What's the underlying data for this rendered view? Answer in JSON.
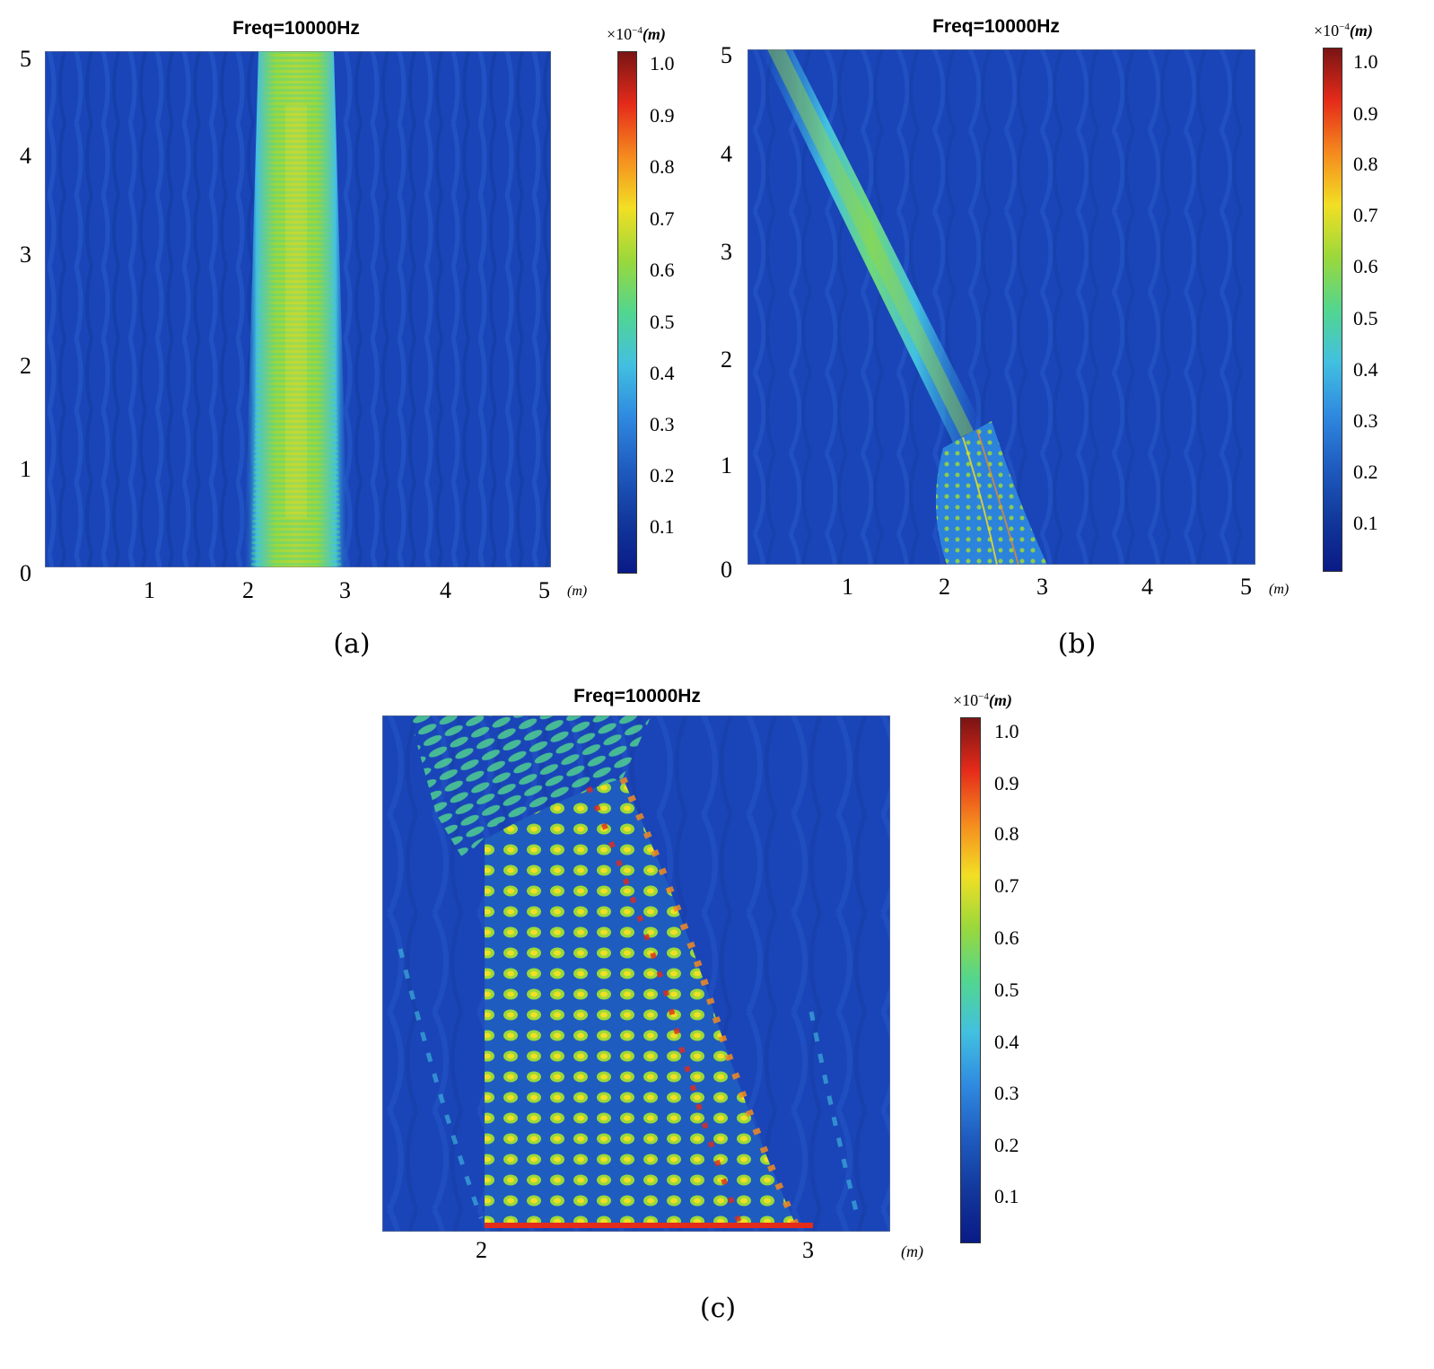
{
  "colors": {
    "background": "#1a45b8",
    "colormap": [
      "#0a1a86",
      "#12389c",
      "#1f5cc0",
      "#2f8ae0",
      "#42c0e0",
      "#52d68f",
      "#9ad83b",
      "#f2df24",
      "#f58a1e",
      "#e52b1a",
      "#7a1414"
    ]
  },
  "panels": [
    {
      "caption": "(a)",
      "title": "Freq=10000Hz",
      "x_unit": "(m)",
      "cb_mult_base": "×10",
      "cb_mult_exp": "−4",
      "cb_mult_unit": "(m)"
    },
    {
      "caption": "(b)",
      "title": "Freq=10000Hz",
      "x_unit": "(m)",
      "cb_mult_base": "×10",
      "cb_mult_exp": "−4",
      "cb_mult_unit": "(m)"
    },
    {
      "caption": "(c)",
      "title": "Freq=10000Hz",
      "x_unit": "(m)",
      "cb_mult_base": "×10",
      "cb_mult_exp": "−4",
      "cb_mult_unit": "(m)"
    }
  ],
  "chart_data": [
    {
      "type": "heatmap",
      "title": "Freq=10000Hz",
      "xlabel": "(m)",
      "ylabel": "",
      "xlim": [
        0,
        5
      ],
      "ylim": [
        0,
        5
      ],
      "x_ticks": [
        "1",
        "2",
        "3",
        "4",
        "5"
      ],
      "y_ticks": [
        "0",
        "1",
        "2",
        "3",
        "4",
        "5"
      ],
      "colorbar": {
        "ticks": [
          "1.0",
          "0.9",
          "0.8",
          "0.7",
          "0.6",
          "0.5",
          "0.4",
          "0.3",
          "0.2",
          "0.1"
        ],
        "range": [
          0,
          1.05
        ],
        "multiplier": "×10^-4 (m)"
      },
      "features": [
        {
          "name": "vertical beam",
          "x_range": [
            2.0,
            3.0
          ],
          "y_range": [
            0,
            5
          ],
          "value": 0.55,
          "peak": 0.8
        }
      ]
    },
    {
      "type": "heatmap",
      "title": "Freq=10000Hz",
      "xlabel": "(m)",
      "ylabel": "",
      "xlim": [
        0,
        5
      ],
      "ylim": [
        0,
        5
      ],
      "x_ticks": [
        "1",
        "2",
        "3",
        "4",
        "5"
      ],
      "y_ticks": [
        "0",
        "1",
        "2",
        "3",
        "4",
        "5"
      ],
      "colorbar": {
        "ticks": [
          "1.0",
          "0.9",
          "0.8",
          "0.7",
          "0.6",
          "0.5",
          "0.4",
          "0.3",
          "0.2",
          "0.1"
        ],
        "range": [
          0,
          1.05
        ],
        "multiplier": "×10^-4 (m)"
      },
      "features": [
        {
          "name": "bending region",
          "x_range": [
            2.0,
            3.0
          ],
          "y_range": [
            0,
            1.4
          ],
          "value": 0.55,
          "peak": 0.7
        },
        {
          "name": "deflected beam",
          "from": [
            2.2,
            1.3
          ],
          "to": [
            0.2,
            5.0
          ],
          "value": 0.45
        }
      ]
    },
    {
      "type": "heatmap",
      "title": "Freq=10000Hz",
      "xlabel": "(m)",
      "ylabel": "",
      "xlim": [
        1.7,
        3.2
      ],
      "x_ticks": [
        "2",
        "3"
      ],
      "y_ticks": [],
      "colorbar": {
        "ticks": [
          "1.0",
          "0.9",
          "0.8",
          "0.7",
          "0.6",
          "0.5",
          "0.4",
          "0.3",
          "0.2",
          "0.1"
        ],
        "range": [
          0,
          1.05
        ],
        "multiplier": "×10^-4 (m)"
      },
      "features": [
        {
          "name": "lattice of maxima",
          "x_range": [
            2.0,
            3.0
          ],
          "value": 0.6,
          "peak": 0.9
        }
      ]
    }
  ]
}
